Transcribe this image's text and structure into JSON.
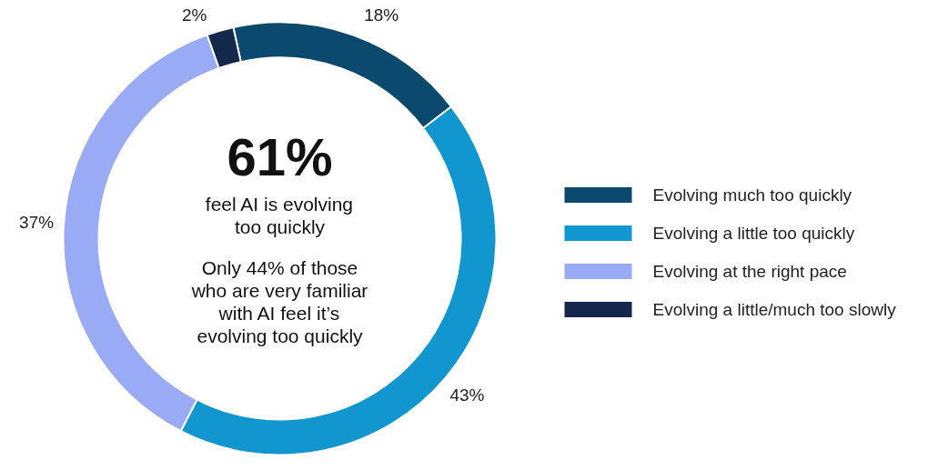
{
  "chart_data": {
    "type": "donut",
    "categories": [
      "Evolving much too quickly",
      "Evolving a little too quickly",
      "Evolving at the right pace",
      "Evolving a little/much too slowly"
    ],
    "values": [
      18,
      43,
      37,
      2
    ],
    "colors": [
      "#0b4a6e",
      "#1196cf",
      "#9aabf5",
      "#13284b"
    ],
    "value_labels": [
      "18%",
      "43%",
      "37%",
      "2%"
    ],
    "legend": "right",
    "annotations": [
      "61%",
      "feel AI is evolving\ntoo quickly",
      "Only 44% of those\nwho are very familiar\nwith AI feel it’s\nevolving too quickly"
    ]
  }
}
